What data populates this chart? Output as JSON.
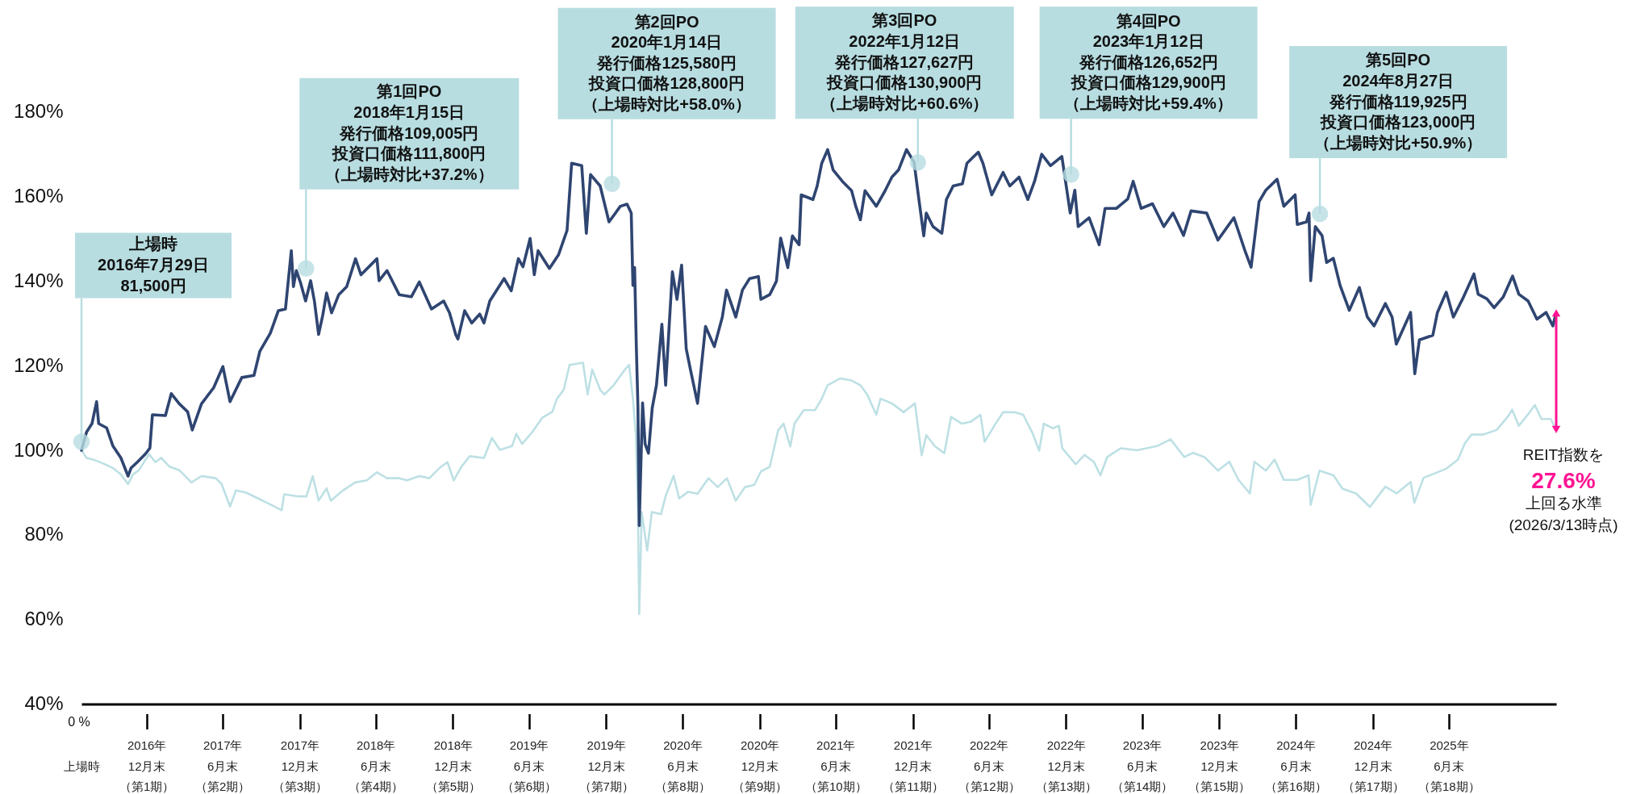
{
  "chart_data": {
    "type": "line",
    "xlim": [
      "2016-07-29",
      "2026-03-13"
    ],
    "ylim": [
      40,
      206
    ],
    "xticks": [
      {
        "value": "2016-07-29",
        "label": "上場時"
      },
      {
        "value": "2016-12-31",
        "label": "2016年12月末（第1期）"
      },
      {
        "value": "2017-06-30",
        "label": "2017年6月末（第2期）"
      },
      {
        "value": "2017-12-31",
        "label": "2017年12月末（第3期）"
      },
      {
        "value": "2018-06-30",
        "label": "2018年6月末（第4期）"
      },
      {
        "value": "2018-12-31",
        "label": "2018年12月末（第5期）"
      },
      {
        "value": "2019-06-30",
        "label": "2019年6月末（第6期）"
      },
      {
        "value": "2019-12-31",
        "label": "2019年12月末（第7期）"
      },
      {
        "value": "2020-06-30",
        "label": "2020年6月末（第8期）"
      },
      {
        "value": "2020-12-31",
        "label": "2020年12月末（第9期）"
      },
      {
        "value": "2021-06-30",
        "label": "2021年6月末（第10期）"
      },
      {
        "value": "2021-12-31",
        "label": "2021年12月末（第11期）"
      },
      {
        "value": "2022-06-30",
        "label": "2022年6月末（第12期）"
      },
      {
        "value": "2022-12-31",
        "label": "2022年12月末（第13期）"
      },
      {
        "value": "2023-06-30",
        "label": "2023年6月末（第14期）"
      },
      {
        "value": "2023-12-31",
        "label": "2023年12月末（第15期）"
      },
      {
        "value": "2024-06-30",
        "label": "2024年6月末（第16期）"
      },
      {
        "value": "2024-12-31",
        "label": "2024年12月末（第17期）"
      },
      {
        "value": "2025-06-30",
        "label": "2025年6月末（第18期）"
      }
    ],
    "yticks": [
      {
        "value": 40,
        "label": "40%"
      },
      {
        "value": 60,
        "label": "60%"
      },
      {
        "value": 80,
        "label": "80%"
      },
      {
        "value": 100,
        "label": "100%"
      },
      {
        "value": 120,
        "label": "120%"
      },
      {
        "value": 140,
        "label": "140%"
      },
      {
        "value": 160,
        "label": "160%"
      },
      {
        "value": 180,
        "label": "180%"
      }
    ],
    "grid": false,
    "marker": "none",
    "line_style": "solid",
    "series": [
      {
        "color": "#2f4571",
        "x": [
          "2016-07-29",
          "2016-08-10",
          "2016-08-23",
          "2016-09-03",
          "2016-09-08",
          "2016-09-27",
          "2016-10-12",
          "2016-10-31",
          "2016-11-17",
          "2016-11-24",
          "2016-12-09",
          "2016-12-28",
          "2017-01-08",
          "2017-01-14",
          "2017-02-14",
          "2017-02-28",
          "2017-03-19",
          "2017-04-08",
          "2017-04-19",
          "2017-05-11",
          "2017-06-09",
          "2017-07-01",
          "2017-07-18",
          "2017-08-15",
          "2017-09-13",
          "2017-09-27",
          "2017-10-22",
          "2017-11-10",
          "2017-11-27",
          "2017-12-11",
          "2017-12-16",
          "2017-12-23",
          "2018-01-02",
          "2018-01-14",
          "2018-01-26",
          "2018-02-04",
          "2018-02-14",
          "2018-02-24",
          "2018-03-05",
          "2018-03-17",
          "2018-04-03",
          "2018-04-22",
          "2018-05-13",
          "2018-05-26",
          "2018-07-03",
          "2018-07-08",
          "2018-07-27",
          "2018-08-25",
          "2018-09-23",
          "2018-10-12",
          "2018-11-10",
          "2018-12-09",
          "2018-12-23",
          "2019-01-07",
          "2019-01-12",
          "2019-01-28",
          "2019-02-14",
          "2019-03-05",
          "2019-03-15",
          "2019-03-29",
          "2019-05-02",
          "2019-05-19",
          "2019-06-05",
          "2019-06-16",
          "2019-07-03",
          "2019-07-13",
          "2019-07-22",
          "2019-08-18",
          "2019-09-09",
          "2019-09-29",
          "2019-10-10",
          "2019-11-03",
          "2019-11-14",
          "2019-11-24",
          "2019-12-17",
          "2020-01-07",
          "2020-02-03",
          "2020-02-19",
          "2020-02-29",
          "2020-03-04",
          "2020-03-08",
          "2020-03-12",
          "2020-03-16",
          "2020-03-19",
          "2020-03-27",
          "2020-04-02",
          "2020-04-10",
          "2020-04-19",
          "2020-04-29",
          "2020-05-12",
          "2020-05-21",
          "2020-06-06",
          "2020-06-17",
          "2020-06-28",
          "2020-07-09",
          "2020-07-19",
          "2020-08-05",
          "2020-08-24",
          "2020-09-14",
          "2020-10-03",
          "2020-10-13",
          "2020-11-04",
          "2020-11-20",
          "2020-12-07",
          "2020-12-28",
          "2021-01-03",
          "2021-01-24",
          "2021-02-09",
          "2021-02-19",
          "2021-03-08",
          "2021-03-19",
          "2021-04-04",
          "2021-04-09",
          "2021-05-07",
          "2021-05-17",
          "2021-05-28",
          "2021-06-11",
          "2021-06-24",
          "2021-07-16",
          "2021-08-07",
          "2021-08-17",
          "2021-08-28",
          "2021-09-08",
          "2021-10-05",
          "2021-10-26",
          "2021-11-11",
          "2021-11-27",
          "2021-12-16",
          "2022-01-03",
          "2022-01-13",
          "2022-01-26",
          "2022-02-01",
          "2022-02-17",
          "2022-03-10",
          "2022-03-21",
          "2022-04-06",
          "2022-04-28",
          "2022-05-09",
          "2022-06-05",
          "2022-06-16",
          "2022-07-07",
          "2022-08-03",
          "2022-08-19",
          "2022-09-10",
          "2022-10-01",
          "2022-10-17",
          "2022-11-03",
          "2022-11-24",
          "2022-12-21",
          "2023-01-02",
          "2023-01-10",
          "2023-01-21",
          "2023-01-29",
          "2023-02-24",
          "2023-03-20",
          "2023-04-03",
          "2023-04-30",
          "2023-05-27",
          "2023-06-09",
          "2023-06-28",
          "2023-07-25",
          "2023-08-21",
          "2023-09-12",
          "2023-10-07",
          "2023-10-25",
          "2023-12-01",
          "2023-12-28",
          "2024-02-04",
          "2024-03-02",
          "2024-03-16",
          "2024-04-04",
          "2024-04-20",
          "2024-05-17",
          "2024-06-02",
          "2024-06-29",
          "2024-07-04",
          "2024-07-26",
          "2024-08-01",
          "2024-08-05",
          "2024-08-16",
          "2024-09-01",
          "2024-09-12",
          "2024-09-28",
          "2024-10-14",
          "2024-11-05",
          "2024-11-29",
          "2024-12-18",
          "2025-01-03",
          "2025-01-30",
          "2025-02-15",
          "2025-02-25",
          "2025-03-31",
          "2025-04-10",
          "2025-04-21",
          "2025-05-23",
          "2025-06-03",
          "2025-06-24",
          "2025-07-11",
          "2025-08-02",
          "2025-08-29",
          "2025-09-08",
          "2025-09-29",
          "2025-10-16",
          "2025-11-07",
          "2025-11-29",
          "2025-12-14",
          "2026-01-05",
          "2026-01-26",
          "2026-02-17",
          "2026-03-05",
          "2026-03-13"
        ],
        "values": [
          100,
          104.3,
          106.3,
          111.5,
          106.3,
          105.3,
          101,
          98.2,
          93.9,
          95.8,
          97.2,
          99.1,
          100.5,
          108.4,
          108.2,
          113.4,
          111,
          109.1,
          104.8,
          111,
          114.8,
          119.8,
          111.5,
          117.2,
          117.7,
          123.4,
          127.7,
          133,
          133.4,
          147.2,
          138.7,
          142.5,
          139.6,
          135.3,
          140.1,
          135.3,
          127.4,
          132,
          137.2,
          132.5,
          136.8,
          138.7,
          145.3,
          141.5,
          145.3,
          140.1,
          142.5,
          136.8,
          136.3,
          139.8,
          133.4,
          135.3,
          132.5,
          127.3,
          126.3,
          133,
          130.1,
          132.2,
          130.1,
          135.3,
          140.6,
          137.7,
          145.3,
          143.4,
          150.1,
          141.5,
          147.2,
          143,
          146.3,
          152,
          167.9,
          167.3,
          151.3,
          165.2,
          162.5,
          154,
          157.7,
          158.2,
          156.1,
          139,
          143.2,
          125,
          110,
          82.2,
          111.2,
          101.5,
          99.3,
          110,
          115.4,
          129.8,
          115.4,
          142.2,
          135.7,
          143.8,
          124,
          119.1,
          111.1,
          129.3,
          124.5,
          131.5,
          137.9,
          131.5,
          137.9,
          140.6,
          141.1,
          135.7,
          136.8,
          140,
          150.2,
          143.2,
          150.7,
          148.6,
          160.4,
          159.3,
          162.5,
          167.9,
          171.1,
          166.3,
          163.6,
          161.4,
          157.7,
          154.5,
          161.4,
          157.7,
          161.4,
          164.6,
          166.3,
          171.1,
          168.1,
          160.4,
          150.7,
          156.1,
          152.9,
          151.3,
          159.3,
          162.5,
          163,
          167.9,
          170.5,
          167.9,
          160.4,
          165.7,
          162.5,
          164.6,
          159.3,
          163.6,
          170,
          167.3,
          169.5,
          161.5,
          156.1,
          161.5,
          152.9,
          155,
          148.6,
          157.2,
          157.2,
          159.4,
          163.6,
          157.2,
          158.3,
          152.9,
          156.1,
          150.8,
          156.6,
          156.1,
          149.7,
          155,
          147,
          143.3,
          158.8,
          161.5,
          164.1,
          157.7,
          160.4,
          153.4,
          154,
          156.1,
          140.1,
          152.9,
          150.8,
          144.4,
          145.4,
          139,
          133.1,
          138.5,
          131.5,
          129.4,
          134.7,
          131.5,
          125.1,
          132.6,
          118.1,
          126.1,
          127.2,
          132.6,
          137.4,
          131.5,
          135.8,
          141.7,
          136.9,
          135.8,
          133.7,
          136.3,
          141.2,
          136.9,
          135.3,
          131,
          132.6,
          129.4,
          132.5
        ]
      },
      {
        "color": "#bde0e4",
        "x": [
          "2016-07-29",
          "2016-08-10",
          "2016-08-29",
          "2016-09-23",
          "2016-10-12",
          "2016-10-31",
          "2016-11-17",
          "2016-11-29",
          "2016-12-13",
          "2017-01-06",
          "2017-01-21",
          "2017-02-04",
          "2017-02-23",
          "2017-03-19",
          "2017-04-17",
          "2017-05-11",
          "2017-06-14",
          "2017-06-28",
          "2017-07-18",
          "2017-08-01",
          "2017-08-25",
          "2017-09-23",
          "2017-10-22",
          "2017-11-18",
          "2017-11-24",
          "2017-12-28",
          "2018-01-16",
          "2018-01-31",
          "2018-02-14",
          "2018-03-05",
          "2018-03-15",
          "2018-04-13",
          "2018-05-12",
          "2018-06-09",
          "2018-07-03",
          "2018-07-27",
          "2018-08-25",
          "2018-09-13",
          "2018-10-12",
          "2018-11-05",
          "2018-11-29",
          "2018-12-18",
          "2019-01-02",
          "2019-01-21",
          "2019-02-09",
          "2019-03-15",
          "2019-04-03",
          "2019-04-22",
          "2019-05-21",
          "2019-05-31",
          "2019-06-14",
          "2019-07-08",
          "2019-08-01",
          "2019-08-25",
          "2019-09-05",
          "2019-09-21",
          "2019-10-05",
          "2019-11-06",
          "2019-11-17",
          "2019-11-28",
          "2019-12-17",
          "2019-12-27",
          "2020-01-18",
          "2020-02-14",
          "2020-02-24",
          "2020-03-04",
          "2020-03-11",
          "2020-03-16",
          "2020-03-19",
          "2020-03-25",
          "2020-04-07",
          "2020-04-18",
          "2020-05-10",
          "2020-05-21",
          "2020-06-09",
          "2020-06-22",
          "2020-07-14",
          "2020-08-05",
          "2020-08-31",
          "2020-09-22",
          "2020-10-14",
          "2020-11-04",
          "2020-11-26",
          "2020-12-18",
          "2021-01-03",
          "2021-01-24",
          "2021-02-13",
          "2021-02-26",
          "2021-03-14",
          "2021-03-24",
          "2021-04-15",
          "2021-05-12",
          "2021-05-28",
          "2021-06-11",
          "2021-07-11",
          "2021-08-07",
          "2021-08-28",
          "2021-09-13",
          "2021-10-05",
          "2021-10-15",
          "2021-11-11",
          "2021-12-09",
          "2022-01-05",
          "2022-01-21",
          "2022-02-01",
          "2022-02-22",
          "2022-03-16",
          "2022-04-01",
          "2022-04-27",
          "2022-05-19",
          "2022-06-10",
          "2022-06-20",
          "2022-07-13",
          "2022-08-03",
          "2022-08-30",
          "2022-09-20",
          "2022-10-12",
          "2022-10-28",
          "2022-11-08",
          "2022-11-30",
          "2022-12-14",
          "2022-12-22",
          "2023-01-23",
          "2023-02-13",
          "2023-03-07",
          "2023-03-23",
          "2023-04-08",
          "2023-05-11",
          "2023-06-18",
          "2023-08-05",
          "2023-09-06",
          "2023-10-09",
          "2023-10-30",
          "2023-11-26",
          "2023-12-28",
          "2024-01-24",
          "2024-02-15",
          "2024-03-13",
          "2024-03-24",
          "2024-04-20",
          "2024-05-11",
          "2024-06-02",
          "2024-07-04",
          "2024-07-31",
          "2024-08-05",
          "2024-08-26",
          "2024-09-28",
          "2024-10-20",
          "2024-11-21",
          "2024-12-24",
          "2025-01-30",
          "2025-02-26",
          "2025-03-31",
          "2025-04-09",
          "2025-05-01",
          "2025-05-29",
          "2025-06-25",
          "2025-07-22",
          "2025-08-07",
          "2025-08-23",
          "2025-09-19",
          "2025-10-22",
          "2025-11-18",
          "2025-11-28",
          "2025-12-14",
          "2026-01-05",
          "2026-01-21",
          "2026-02-06",
          "2026-02-28",
          "2026-03-13"
        ],
        "values": [
          100,
          98.2,
          97.7,
          96.7,
          95.8,
          94.3,
          92,
          94.3,
          95.3,
          99.1,
          97.2,
          98.2,
          96.2,
          95.3,
          92.4,
          93.9,
          93.4,
          92,
          86.7,
          90.5,
          90,
          88.6,
          87.2,
          85.8,
          89.6,
          89.1,
          89.1,
          93.9,
          88.1,
          91,
          88.1,
          90.5,
          92.4,
          92.9,
          94.8,
          93.4,
          93.4,
          92.9,
          93.9,
          93.4,
          95.8,
          97.2,
          92.9,
          96.2,
          98.6,
          98.2,
          102.9,
          100.1,
          101,
          103.9,
          101.5,
          104.3,
          107.7,
          109.1,
          112.2,
          114.3,
          120.2,
          120.7,
          113.2,
          119.1,
          114.3,
          113.2,
          115.4,
          119.1,
          120.2,
          112.2,
          103.6,
          85.4,
          61.3,
          85.4,
          76.3,
          85.4,
          84.9,
          89.2,
          94,
          88.6,
          90.2,
          89.7,
          93.4,
          91.3,
          93.4,
          88.1,
          91.3,
          91.8,
          95,
          96.1,
          104.7,
          106.3,
          100.9,
          106.3,
          109.5,
          109.5,
          112.2,
          115.4,
          117,
          116.5,
          115.4,
          113.2,
          108.4,
          112.2,
          111.1,
          109,
          111.1,
          98.8,
          103.6,
          100.9,
          99.3,
          107.9,
          106.3,
          106.8,
          108.4,
          102,
          105.8,
          109,
          109,
          108.4,
          104.1,
          99.9,
          106.3,
          105.2,
          105.8,
          100.5,
          96.7,
          98.9,
          97.3,
          94.1,
          98.4,
          100.5,
          100,
          101,
          102.6,
          98.4,
          99.4,
          98.4,
          95.2,
          97.3,
          93,
          89.8,
          97.3,
          95.2,
          97.8,
          93,
          93,
          94.1,
          87.1,
          95.2,
          94.1,
          90.9,
          89.8,
          86.6,
          91.4,
          89.8,
          92.5,
          87.6,
          93.5,
          94.6,
          95.7,
          97.8,
          101.6,
          103.7,
          103.7,
          104.8,
          108,
          109.6,
          105.8,
          108.5,
          110.7,
          107.4,
          107.4,
          104.9
        ]
      }
    ],
    "annotations": [
      {
        "text": "上場時\n2016年7月29日\n81,500円",
        "x": "2016-07-29",
        "y": 102
      },
      {
        "text": "第1回PO\n2018年1月15日発行価格109,005円投資口価格111,800円（上場時対比+37.2%）",
        "x": "2018-01-15",
        "y": 143
      },
      {
        "text": "第2回PO\n2020年1月14日発行価格125,580円投資口価格128,800円（上場時対比+58.0%）",
        "x": "2020-01-14",
        "y": 163
      },
      {
        "text": "第3回PO\n2022年1月12日発行価格127,627円投資口価格130,900円（上場時対比+60.6%）",
        "x": "2022-01-12",
        "y": 168.1
      },
      {
        "text": "第4回PO\n2023年1月12日発行価格126,652円投資口価格129,900円（上場時対比+59.4%）",
        "x": "2023-01-12",
        "y": 165.2
      },
      {
        "text": "第5回PO\n2024年8月27日発行価格119,925円投資口価格123,000円（上場時対比+50.9%）",
        "x": "2024-08-27",
        "y": 155.9
      },
      {
        "text": "REIT指数を\n27.6%\n上回る水準\n(2026/3/13時点)",
        "x": "2026-03-13",
        "y": 104.9
      },
      "0 %"
    ]
  }
}
